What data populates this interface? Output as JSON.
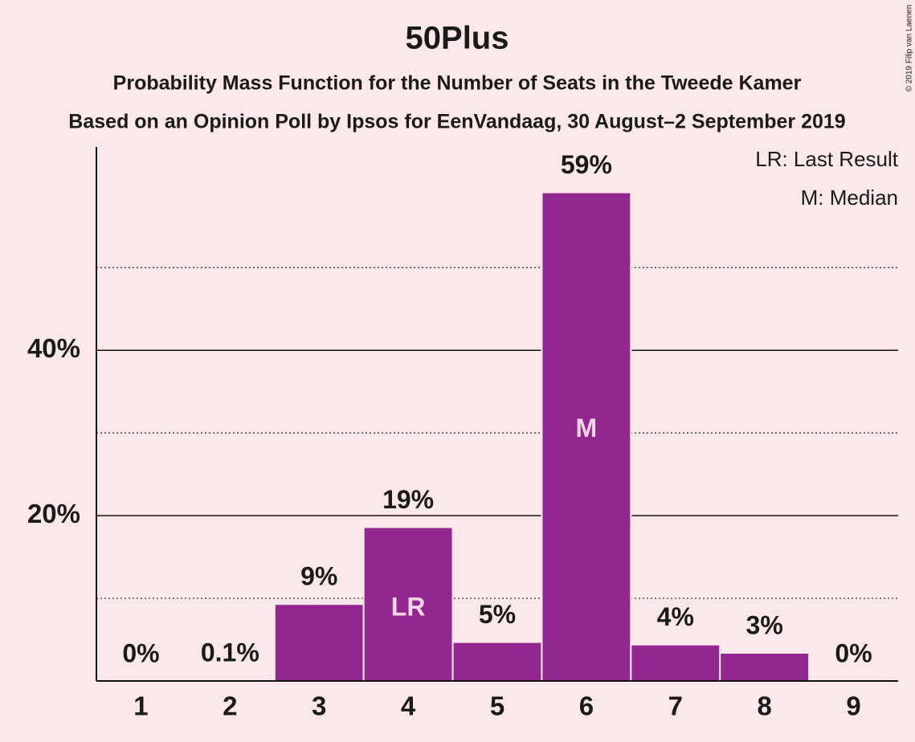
{
  "chart_data": {
    "type": "bar",
    "title": "50Plus",
    "subtitle": "Probability Mass Function for the Number of Seats in the Tweede Kamer",
    "subtitle2": "Based on an Opinion Poll by Ipsos for EenVandaag, 30 August–2 September 2019",
    "categories": [
      1,
      2,
      3,
      4,
      5,
      6,
      7,
      8,
      9
    ],
    "values": [
      0,
      0.1,
      9.3,
      18.6,
      4.7,
      59.1,
      4.4,
      3.4,
      0
    ],
    "value_labels": [
      "0%",
      "0.1%",
      "9%",
      "19%",
      "5%",
      "59%",
      "4%",
      "3%",
      "0%"
    ],
    "bar_labels": [
      null,
      null,
      null,
      "LR",
      null,
      "M",
      null,
      null,
      null
    ],
    "legend_notes": [
      "LR: Last Result",
      "M: Median"
    ],
    "color": "#92278f",
    "ylim": [
      0,
      64.4
    ],
    "yticks": [
      {
        "value": 20,
        "label": "20%"
      },
      {
        "value": 40,
        "label": "40%"
      }
    ],
    "minor_grid": [
      10,
      30,
      50
    ],
    "grid": true,
    "copyright": "© 2019 Filip van Laenen"
  }
}
